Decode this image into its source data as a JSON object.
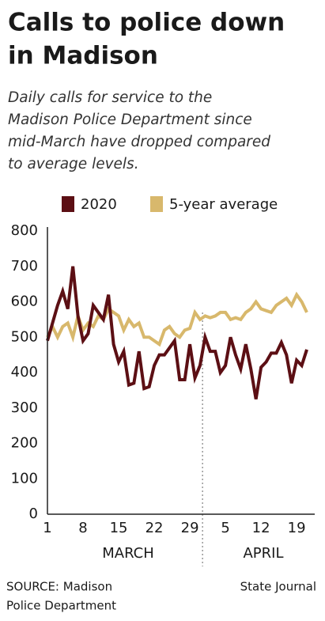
{
  "chart_data": {
    "type": "line",
    "title": [
      "Calls to police down",
      "in Madison"
    ],
    "subtitle": [
      "Daily calls for service to the",
      "Madison Police Department since",
      "mid-March have dropped compared",
      "to average levels."
    ],
    "categories": [
      "1",
      null,
      null,
      null,
      null,
      null,
      null,
      "8",
      null,
      null,
      null,
      null,
      null,
      null,
      "15",
      null,
      null,
      null,
      null,
      null,
      null,
      "22",
      null,
      null,
      null,
      null,
      null,
      null,
      "29",
      null,
      null,
      null,
      null,
      null,
      null,
      "5",
      null,
      null,
      null,
      null,
      null,
      null,
      "12",
      null,
      null,
      null,
      null,
      null,
      null,
      "19",
      null,
      null
    ],
    "month_labels": [
      "MARCH",
      "APRIL"
    ],
    "series": [
      {
        "name": "2020",
        "color": "#5c0f14",
        "values": [
          490,
          540,
          590,
          630,
          580,
          700,
          560,
          490,
          510,
          590,
          570,
          550,
          620,
          480,
          430,
          460,
          365,
          370,
          460,
          355,
          360,
          420,
          450,
          450,
          470,
          490,
          380,
          380,
          480,
          385,
          420,
          500,
          460,
          460,
          400,
          420,
          500,
          450,
          410,
          480,
          410,
          325,
          415,
          430,
          455,
          455,
          485,
          450,
          370,
          435,
          420,
          465
        ]
      },
      {
        "name": "5-year average",
        "color": "#d8b86c",
        "values": [
          500,
          530,
          500,
          530,
          540,
          500,
          560,
          520,
          540,
          530,
          560,
          550,
          580,
          570,
          560,
          520,
          550,
          530,
          540,
          500,
          500,
          490,
          480,
          520,
          530,
          510,
          500,
          520,
          525,
          570,
          550,
          560,
          555,
          560,
          570,
          570,
          550,
          555,
          550,
          570,
          580,
          600,
          580,
          575,
          570,
          590,
          600,
          610,
          590,
          620,
          600,
          570
        ]
      }
    ],
    "ylim": [
      0,
      800
    ],
    "yticks": [
      0,
      100,
      200,
      300,
      400,
      500,
      600,
      700,
      800
    ],
    "grid": false,
    "source": [
      "SOURCE: Madison",
      "Police Department"
    ],
    "credit": "State Journal"
  }
}
